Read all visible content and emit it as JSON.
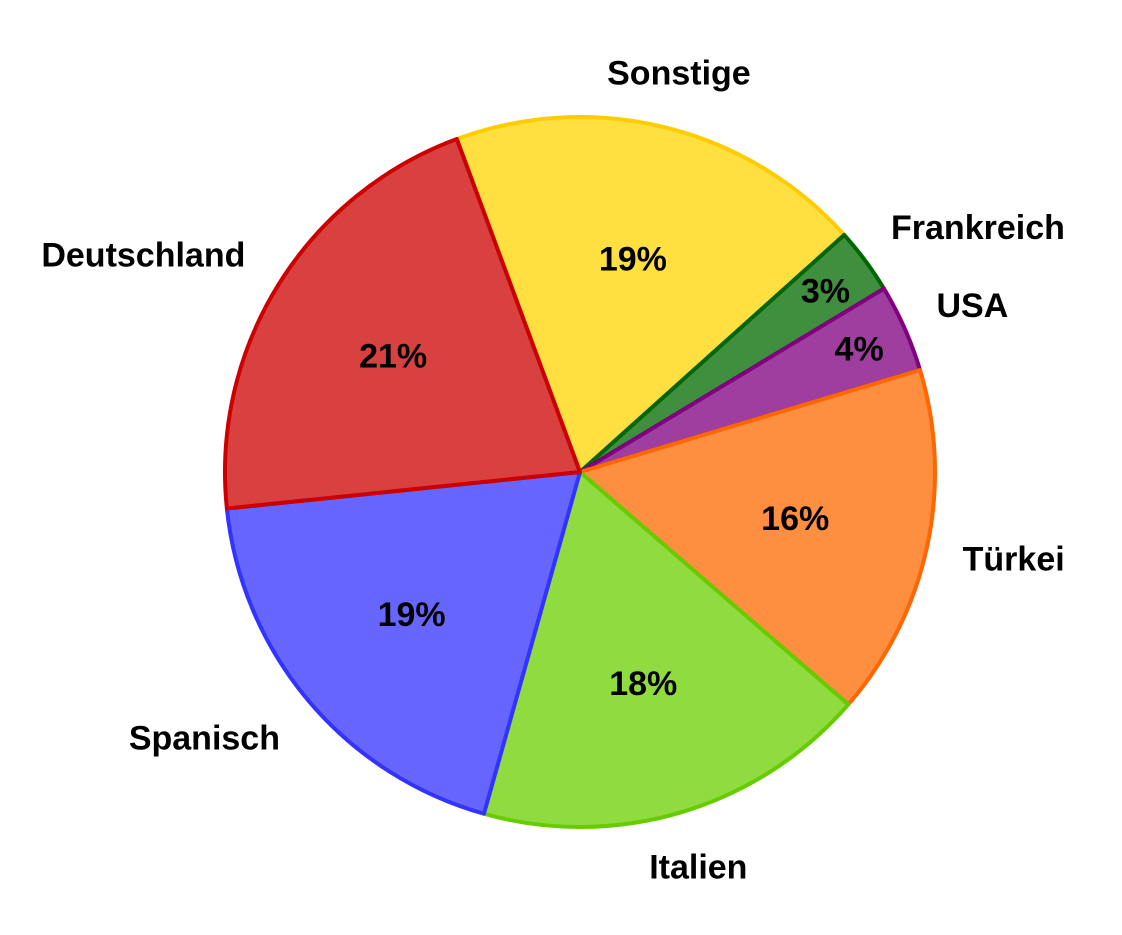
{
  "chart_data": {
    "type": "pie",
    "title": "",
    "start_angle_deg": -20.3,
    "direction": "clockwise",
    "slices": [
      {
        "label": "Sonstige",
        "value": 19,
        "value_label": "19%",
        "fill": "#ffe040",
        "stroke": "#ffcc00"
      },
      {
        "label": "Frankreich",
        "value": 3,
        "value_label": "3%",
        "fill": "#3f8f3f",
        "stroke": "#006600"
      },
      {
        "label": "USA",
        "value": 4,
        "value_label": "4%",
        "fill": "#9e3e9e",
        "stroke": "#800080"
      },
      {
        "label": "Türkei",
        "value": 16,
        "value_label": "16%",
        "fill": "#ff8f40",
        "stroke": "#ff6600"
      },
      {
        "label": "Italien",
        "value": 18,
        "value_label": "18%",
        "fill": "#8fdb40",
        "stroke": "#66cc00"
      },
      {
        "label": "Spanisch",
        "value": 19,
        "value_label": "19%",
        "fill": "#6666ff",
        "stroke": "#3333ff"
      },
      {
        "label": "Deutschland",
        "value": 21,
        "value_label": "21%",
        "fill": "#d94040",
        "stroke": "#cc0000"
      }
    ]
  }
}
